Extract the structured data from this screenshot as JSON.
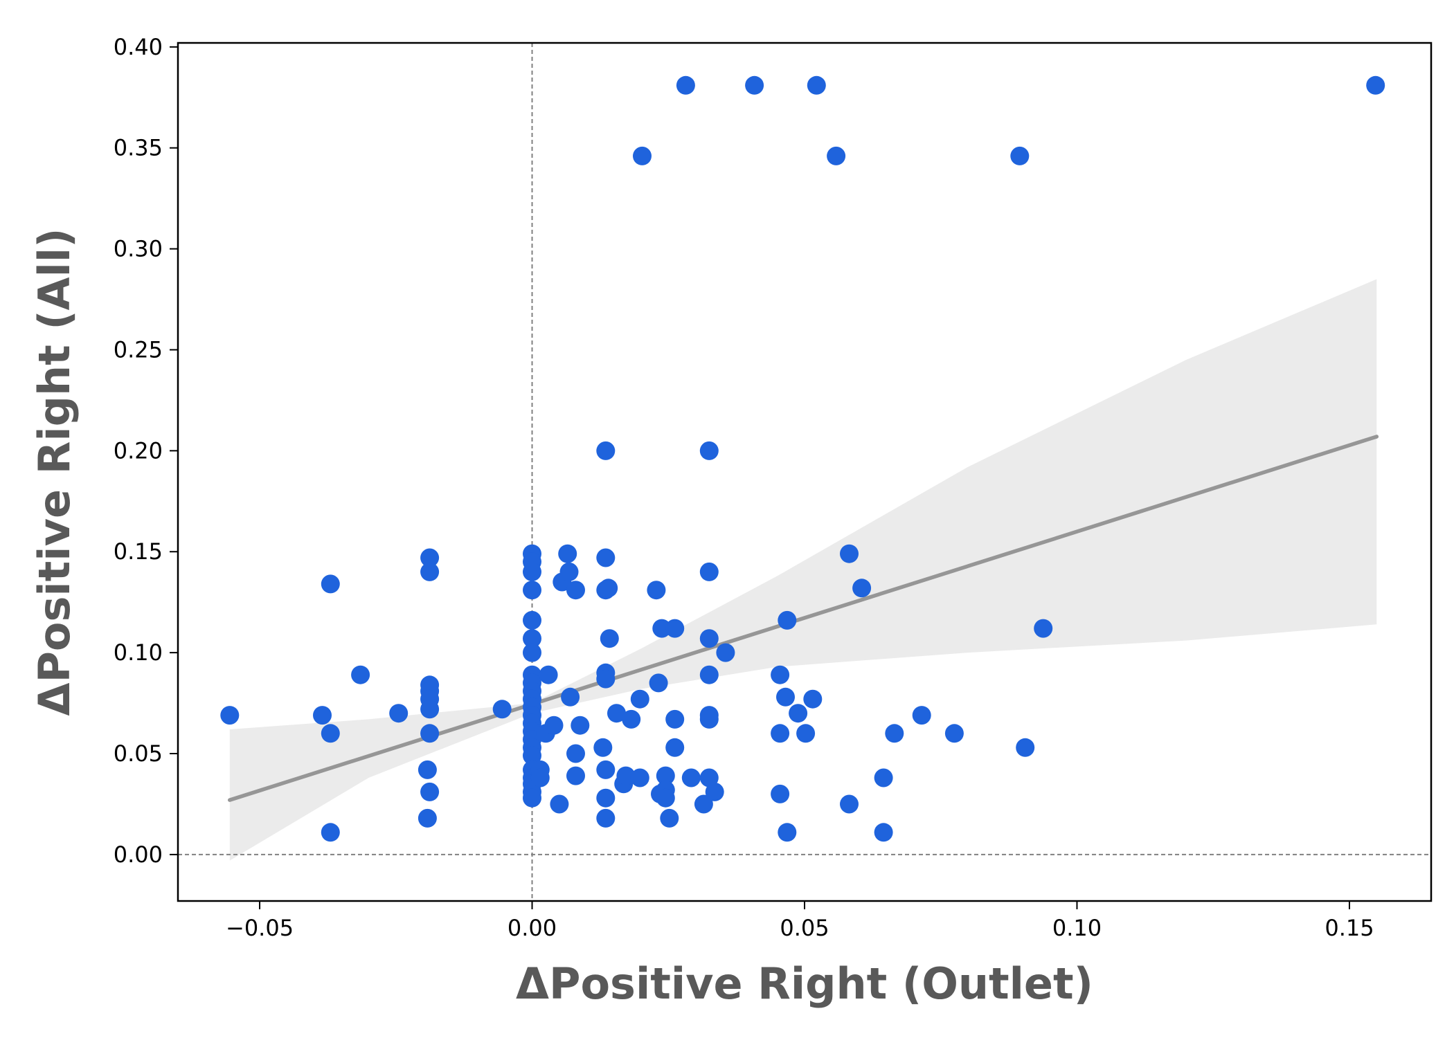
{
  "chart_data": {
    "type": "scatter",
    "xlabel": "ΔPositive Right  (Outlet)",
    "ylabel": "ΔPositive Right  (All)",
    "xlim": [
      -0.065,
      0.165
    ],
    "ylim": [
      -0.023,
      0.402
    ],
    "x_ticks": [
      -0.05,
      0.0,
      0.05,
      0.1,
      0.15
    ],
    "x_tick_labels": [
      "−0.05",
      "0.00",
      "0.05",
      "0.10",
      "0.15"
    ],
    "y_ticks": [
      0.0,
      0.05,
      0.1,
      0.15,
      0.2,
      0.25,
      0.3,
      0.35,
      0.4
    ],
    "y_tick_labels": [
      "0.00",
      "0.05",
      "0.10",
      "0.15",
      "0.20",
      "0.25",
      "0.30",
      "0.35",
      "0.40"
    ],
    "grid": false,
    "reference_lines": [
      {
        "orientation": "vertical",
        "value": 0.0,
        "style": "dashed",
        "color": "#808080"
      },
      {
        "orientation": "horizontal",
        "value": 0.0,
        "style": "dashed",
        "color": "#808080"
      }
    ],
    "point_color": "#1f63dc",
    "regression": {
      "color": "#969696",
      "x": [
        -0.0555,
        0.155
      ],
      "y": [
        0.027,
        0.207
      ]
    },
    "confidence_band": {
      "color": "#ebebeb",
      "x": [
        -0.0555,
        -0.03,
        0.0,
        0.02,
        0.045,
        0.08,
        0.12,
        0.155
      ],
      "upper": [
        0.062,
        0.067,
        0.075,
        0.102,
        0.138,
        0.192,
        0.245,
        0.285
      ],
      "lower": [
        -0.003,
        0.038,
        0.07,
        0.082,
        0.093,
        0.1,
        0.106,
        0.114
      ]
    },
    "points": [
      [
        -0.0555,
        0.069
      ],
      [
        -0.0385,
        0.069
      ],
      [
        -0.037,
        0.06
      ],
      [
        -0.037,
        0.134
      ],
      [
        -0.037,
        0.011
      ],
      [
        -0.0315,
        0.089
      ],
      [
        -0.0245,
        0.07
      ],
      [
        -0.0188,
        0.147
      ],
      [
        -0.0188,
        0.14
      ],
      [
        -0.0188,
        0.084
      ],
      [
        -0.0188,
        0.081
      ],
      [
        -0.0188,
        0.077
      ],
      [
        -0.0188,
        0.072
      ],
      [
        -0.0188,
        0.06
      ],
      [
        -0.0188,
        0.031
      ],
      [
        -0.0192,
        0.042
      ],
      [
        -0.0192,
        0.018
      ],
      [
        -0.0055,
        0.072
      ],
      [
        0.0,
        0.149
      ],
      [
        0.0,
        0.145
      ],
      [
        0.0,
        0.14
      ],
      [
        0.0,
        0.131
      ],
      [
        0.0,
        0.116
      ],
      [
        0.0,
        0.107
      ],
      [
        0.0,
        0.1
      ],
      [
        0.0,
        0.089
      ],
      [
        0.0,
        0.085
      ],
      [
        0.0,
        0.081
      ],
      [
        0.0,
        0.077
      ],
      [
        0.0,
        0.073
      ],
      [
        0.0,
        0.069
      ],
      [
        0.0,
        0.065
      ],
      [
        0.0,
        0.061
      ],
      [
        0.0,
        0.057
      ],
      [
        0.0,
        0.053
      ],
      [
        0.0,
        0.049
      ],
      [
        0.0,
        0.042
      ],
      [
        0.0,
        0.038
      ],
      [
        0.0,
        0.035
      ],
      [
        0.0,
        0.031
      ],
      [
        0.0,
        0.028
      ],
      [
        0.0015,
        0.042
      ],
      [
        0.0015,
        0.038
      ],
      [
        0.0025,
        0.06
      ],
      [
        0.003,
        0.089
      ],
      [
        0.004,
        0.064
      ],
      [
        0.005,
        0.025
      ],
      [
        0.0055,
        0.135
      ],
      [
        0.0065,
        0.149
      ],
      [
        0.0068,
        0.14
      ],
      [
        0.007,
        0.078
      ],
      [
        0.008,
        0.05
      ],
      [
        0.008,
        0.039
      ],
      [
        0.008,
        0.131
      ],
      [
        0.0088,
        0.064
      ],
      [
        0.0135,
        0.2
      ],
      [
        0.0135,
        0.147
      ],
      [
        0.0135,
        0.131
      ],
      [
        0.014,
        0.132
      ],
      [
        0.0135,
        0.09
      ],
      [
        0.0135,
        0.087
      ],
      [
        0.013,
        0.053
      ],
      [
        0.0135,
        0.042
      ],
      [
        0.0135,
        0.028
      ],
      [
        0.0135,
        0.018
      ],
      [
        0.0142,
        0.107
      ],
      [
        0.0155,
        0.07
      ],
      [
        0.0168,
        0.035
      ],
      [
        0.0172,
        0.039
      ],
      [
        0.0182,
        0.067
      ],
      [
        0.0198,
        0.038
      ],
      [
        0.0198,
        0.077
      ],
      [
        0.0202,
        0.346
      ],
      [
        0.0228,
        0.131
      ],
      [
        0.0232,
        0.085
      ],
      [
        0.0235,
        0.03
      ],
      [
        0.0238,
        0.112
      ],
      [
        0.0245,
        0.039
      ],
      [
        0.0245,
        0.032
      ],
      [
        0.0245,
        0.028
      ],
      [
        0.0252,
        0.018
      ],
      [
        0.0262,
        0.112
      ],
      [
        0.0262,
        0.067
      ],
      [
        0.0262,
        0.053
      ],
      [
        0.0282,
        0.381
      ],
      [
        0.0292,
        0.038
      ],
      [
        0.0315,
        0.025
      ],
      [
        0.0325,
        0.2
      ],
      [
        0.0325,
        0.14
      ],
      [
        0.0325,
        0.107
      ],
      [
        0.0325,
        0.089
      ],
      [
        0.0325,
        0.069
      ],
      [
        0.0325,
        0.067
      ],
      [
        0.0325,
        0.038
      ],
      [
        0.0335,
        0.031
      ],
      [
        0.0355,
        0.1
      ],
      [
        0.0408,
        0.381
      ],
      [
        0.0455,
        0.089
      ],
      [
        0.0455,
        0.06
      ],
      [
        0.0455,
        0.03
      ],
      [
        0.0465,
        0.078
      ],
      [
        0.0468,
        0.116
      ],
      [
        0.0468,
        0.011
      ],
      [
        0.0488,
        0.07
      ],
      [
        0.0502,
        0.06
      ],
      [
        0.0515,
        0.077
      ],
      [
        0.0522,
        0.381
      ],
      [
        0.0558,
        0.346
      ],
      [
        0.0582,
        0.149
      ],
      [
        0.0582,
        0.025
      ],
      [
        0.0605,
        0.132
      ],
      [
        0.0645,
        0.038
      ],
      [
        0.0645,
        0.011
      ],
      [
        0.0665,
        0.06
      ],
      [
        0.0715,
        0.069
      ],
      [
        0.0775,
        0.06
      ],
      [
        0.0895,
        0.346
      ],
      [
        0.0905,
        0.053
      ],
      [
        0.0938,
        0.112
      ],
      [
        0.1548,
        0.381
      ]
    ]
  }
}
